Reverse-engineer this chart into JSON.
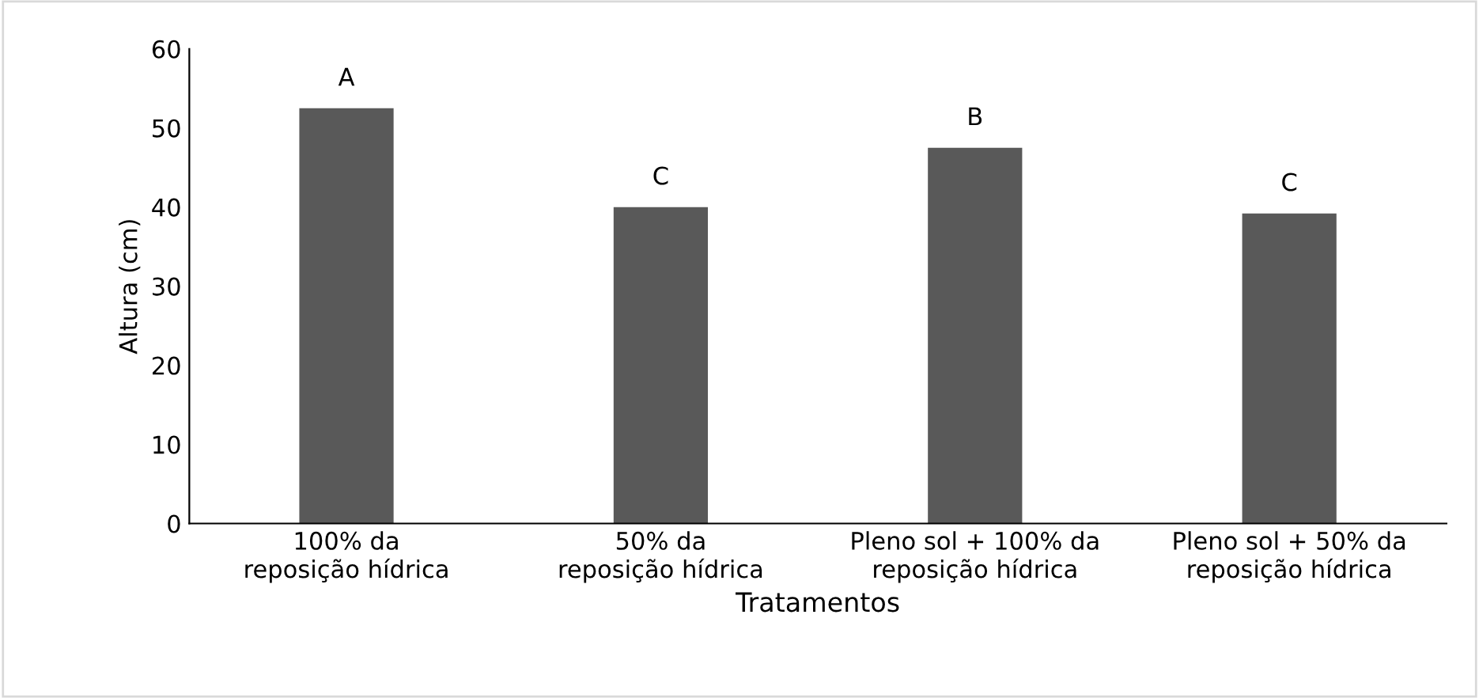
{
  "chart_data": {
    "type": "bar",
    "xlabel": "Tratamentos",
    "ylabel": "Altura (cm)",
    "categories": [
      "100% da\nreposição hídrica",
      "50% da\nreposição hídrica",
      "Pleno sol + 100% da\nreposição hídrica",
      "Pleno sol + 50% da\nreposição hídrica"
    ],
    "values": [
      52.5,
      40.0,
      47.5,
      39.2
    ],
    "value_labels": [
      "A",
      "C",
      "B",
      "C"
    ],
    "color": "#595959",
    "ylim": [
      0,
      60
    ],
    "yticks": [
      0,
      10,
      20,
      30,
      40,
      50,
      60
    ],
    "grid": false,
    "legend": false
  }
}
